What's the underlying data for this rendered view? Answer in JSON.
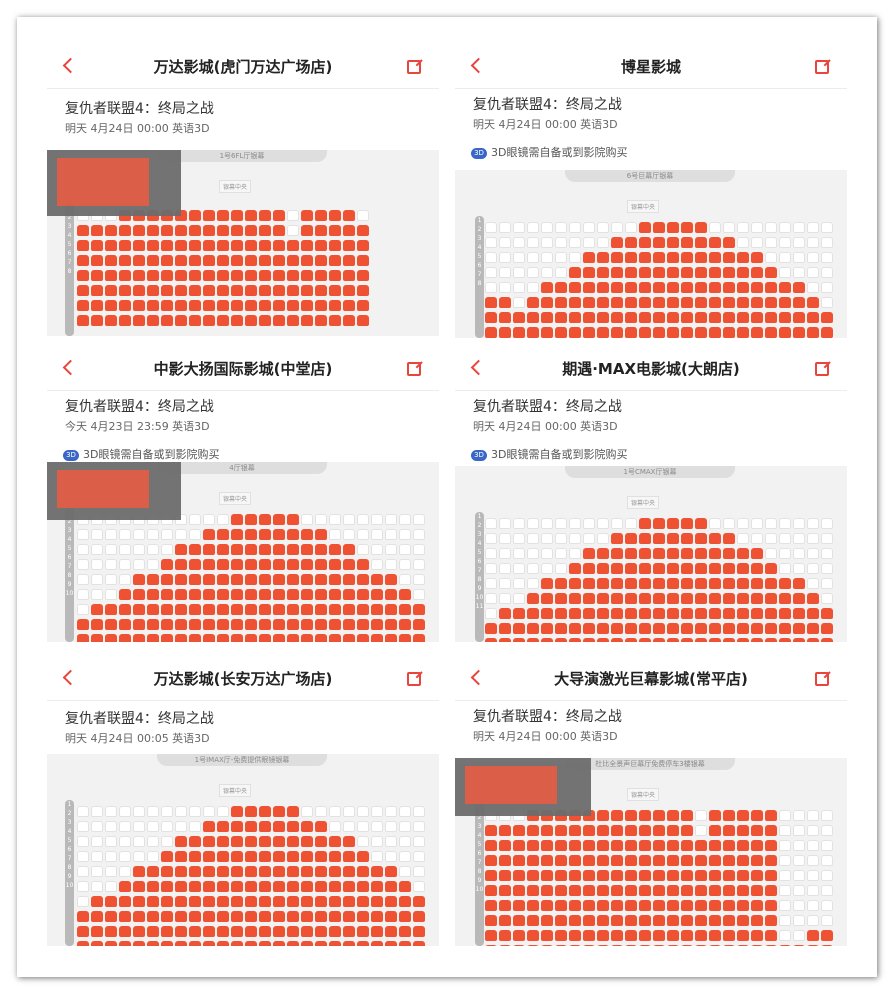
{
  "colors": {
    "sold_seat": "#ef5232",
    "free_seat": "#ffffff",
    "accent": "#e8453c",
    "seatmap_bg": "#f2f2f2"
  },
  "icons": {
    "back": "chevron-left-icon",
    "share": "share-icon",
    "glasses": "3d-glasses-icon"
  },
  "panels": [
    {
      "cinema": "万达影城(虎门万达广场店)",
      "movie": "复仇者联盟4：终局之战",
      "showtime": "明天 4月24日 00:00 英语3D",
      "notice": "",
      "screen": "1号6FL厅银幕",
      "screen_center": "银幕中央",
      "row_labels": [
        "1",
        "2",
        "3",
        "4",
        "5",
        "6",
        "7",
        "8"
      ],
      "occupancy": "mostly sold"
    },
    {
      "cinema": "博星影城",
      "movie": "复仇者联盟4：终局之战",
      "showtime": "明天 4月24日 00:00 英语3D",
      "notice": "3D眼镜需自备或到影院购买",
      "screen": "6号巨幕厅银幕",
      "screen_center": "银幕中央",
      "row_labels": [
        "1",
        "2",
        "3",
        "4",
        "5",
        "6",
        "7",
        "8"
      ],
      "occupancy": "partially sold"
    },
    {
      "cinema": "中影大扬国际影城(中堂店)",
      "movie": "复仇者联盟4：终局之战",
      "showtime": "今天 4月23日 23:59 英语3D",
      "notice": "3D眼镜需自备或到影院购买",
      "screen": "4厅银幕",
      "screen_center": "银幕中央",
      "row_labels": [
        "1",
        "2",
        "3",
        "4",
        "5",
        "6",
        "7",
        "8",
        "9",
        "10"
      ],
      "occupancy": "partially sold"
    },
    {
      "cinema": "期遇·MAX电影城(大朗店)",
      "movie": "复仇者联盟4：终局之战",
      "showtime": "明天 4月24日 00:00 英语3D",
      "notice": "3D眼镜需自备或到影院购买",
      "screen": "1号CMAX厅银幕",
      "screen_center": "银幕中央",
      "row_labels": [
        "1",
        "2",
        "3",
        "4",
        "5",
        "6",
        "7",
        "8",
        "9",
        "10",
        "11"
      ],
      "occupancy": "partially sold"
    },
    {
      "cinema": "万达影城(长安万达广场店)",
      "movie": "复仇者联盟4：终局之战",
      "showtime": "明天 4月24日 00:05 英语3D",
      "notice": "",
      "screen": "1号IMAX厅-免费提供眼镜银幕",
      "screen_center": "银幕中央",
      "row_labels": [
        "1",
        "2",
        "3",
        "4",
        "5",
        "6",
        "7",
        "8",
        "9",
        "10"
      ],
      "occupancy": "partially sold"
    },
    {
      "cinema": "大导演激光巨幕影城(常平店)",
      "movie": "复仇者联盟4：终局之战",
      "showtime": "明天 4月24日 00:00 英语3D",
      "notice": "",
      "screen": "杜比全景声巨幕厅免费停车3楼银幕",
      "screen_center": "银幕中央",
      "row_labels": [
        "1",
        "2",
        "3",
        "4",
        "5",
        "6",
        "7",
        "8",
        "9",
        "10"
      ],
      "occupancy": "mostly sold"
    }
  ]
}
